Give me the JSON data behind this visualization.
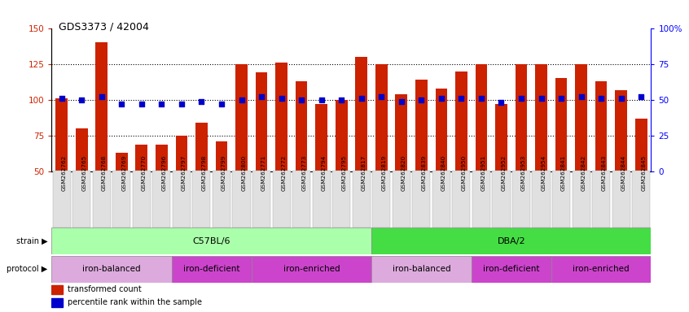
{
  "title": "GDS3373 / 42004",
  "samples": [
    "GSM262762",
    "GSM262765",
    "GSM262768",
    "GSM262769",
    "GSM262770",
    "GSM262796",
    "GSM262797",
    "GSM262798",
    "GSM262799",
    "GSM262800",
    "GSM262771",
    "GSM262772",
    "GSM262773",
    "GSM262794",
    "GSM262795",
    "GSM262817",
    "GSM262819",
    "GSM262820",
    "GSM262839",
    "GSM262840",
    "GSM262950",
    "GSM262951",
    "GSM262952",
    "GSM262953",
    "GSM262954",
    "GSM262841",
    "GSM262842",
    "GSM262843",
    "GSM262844",
    "GSM262845"
  ],
  "bar_values": [
    101,
    80,
    140,
    63,
    69,
    69,
    75,
    84,
    71,
    125,
    119,
    126,
    113,
    97,
    100,
    130,
    125,
    104,
    114,
    108,
    120,
    125,
    97,
    125,
    125,
    115,
    125,
    113,
    107,
    87
  ],
  "percentile_values": [
    51,
    50,
    52,
    47,
    47,
    47,
    47,
    49,
    47,
    50,
    52,
    51,
    50,
    50,
    50,
    51,
    52,
    49,
    50,
    51,
    51,
    51,
    48,
    51,
    51,
    51,
    52,
    51,
    51,
    52
  ],
  "ylim_left": [
    50,
    150
  ],
  "ylim_right": [
    0,
    100
  ],
  "yticks_left": [
    50,
    75,
    100,
    125,
    150
  ],
  "yticks_right": [
    0,
    25,
    50,
    75,
    100
  ],
  "bar_color": "#CC2200",
  "percentile_color": "#0000CC",
  "background_color": "#ffffff",
  "strain_groups": [
    {
      "label": "C57BL/6",
      "start": 0,
      "end": 15,
      "color": "#AAFFAA"
    },
    {
      "label": "DBA/2",
      "start": 16,
      "end": 29,
      "color": "#44DD44"
    }
  ],
  "protocol_groups": [
    {
      "label": "iron-balanced",
      "start": 0,
      "end": 5,
      "color": "#DDAADD"
    },
    {
      "label": "iron-deficient",
      "start": 6,
      "end": 9,
      "color": "#CC44CC"
    },
    {
      "label": "iron-enriched",
      "start": 10,
      "end": 15,
      "color": "#CC44CC"
    },
    {
      "label": "iron-balanced",
      "start": 16,
      "end": 20,
      "color": "#DDAADD"
    },
    {
      "label": "iron-deficient",
      "start": 21,
      "end": 24,
      "color": "#CC44CC"
    },
    {
      "label": "iron-enriched",
      "start": 25,
      "end": 29,
      "color": "#CC44CC"
    }
  ]
}
